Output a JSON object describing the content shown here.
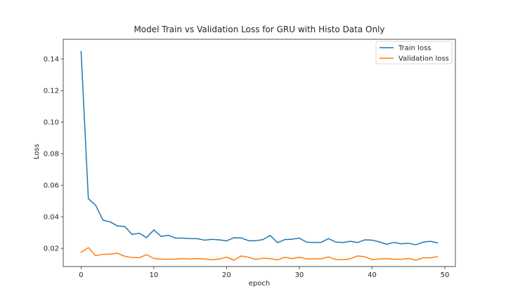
{
  "chart_data": {
    "type": "line",
    "title": "Model Train vs Validation Loss for GRU with Histo Data Only",
    "xlabel": "epoch",
    "ylabel": "Loss",
    "xlim": [
      -2.45,
      51.45
    ],
    "ylim": [
      0.0085,
      0.1525
    ],
    "xticks": [
      0,
      10,
      20,
      30,
      40,
      50
    ],
    "yticks": [
      0.02,
      0.04,
      0.06,
      0.08,
      0.1,
      0.12,
      0.14
    ],
    "ytick_labels": [
      "0.02",
      "0.04",
      "0.06",
      "0.08",
      "0.10",
      "0.12",
      "0.14"
    ],
    "grid": false,
    "legend_position": "top-right",
    "x": [
      0,
      1,
      2,
      3,
      4,
      5,
      6,
      7,
      8,
      9,
      10,
      11,
      12,
      13,
      14,
      15,
      16,
      17,
      18,
      19,
      20,
      21,
      22,
      23,
      24,
      25,
      26,
      27,
      28,
      29,
      30,
      31,
      32,
      33,
      34,
      35,
      36,
      37,
      38,
      39,
      40,
      41,
      42,
      43,
      44,
      45,
      46,
      47,
      48,
      49
    ],
    "series": [
      {
        "name": "Train loss",
        "color": "#1f77b4",
        "values": [
          0.1448,
          0.0515,
          0.0473,
          0.0379,
          0.0368,
          0.0342,
          0.0339,
          0.0289,
          0.0296,
          0.0268,
          0.0317,
          0.0276,
          0.0283,
          0.0265,
          0.0265,
          0.0262,
          0.0261,
          0.0252,
          0.0257,
          0.0254,
          0.0248,
          0.0267,
          0.0266,
          0.0249,
          0.0248,
          0.0256,
          0.0282,
          0.0236,
          0.0256,
          0.0258,
          0.0265,
          0.0239,
          0.0238,
          0.0238,
          0.0262,
          0.024,
          0.0237,
          0.0245,
          0.0237,
          0.0254,
          0.0252,
          0.0241,
          0.0226,
          0.0238,
          0.0229,
          0.0232,
          0.0223,
          0.0239,
          0.0245,
          0.0235
        ]
      },
      {
        "name": "Validation loss",
        "color": "#ff7f0e",
        "values": [
          0.0175,
          0.0205,
          0.0154,
          0.0162,
          0.0164,
          0.0169,
          0.015,
          0.0142,
          0.0141,
          0.016,
          0.0136,
          0.0132,
          0.0131,
          0.0132,
          0.0135,
          0.0133,
          0.0135,
          0.0133,
          0.0128,
          0.0132,
          0.0145,
          0.0125,
          0.0152,
          0.0144,
          0.013,
          0.0138,
          0.0135,
          0.0127,
          0.0144,
          0.0135,
          0.0144,
          0.0133,
          0.0134,
          0.0134,
          0.0146,
          0.0129,
          0.0128,
          0.0134,
          0.0152,
          0.0147,
          0.0129,
          0.0133,
          0.0135,
          0.0131,
          0.0131,
          0.0136,
          0.0125,
          0.014,
          0.014,
          0.0148
        ]
      }
    ]
  }
}
